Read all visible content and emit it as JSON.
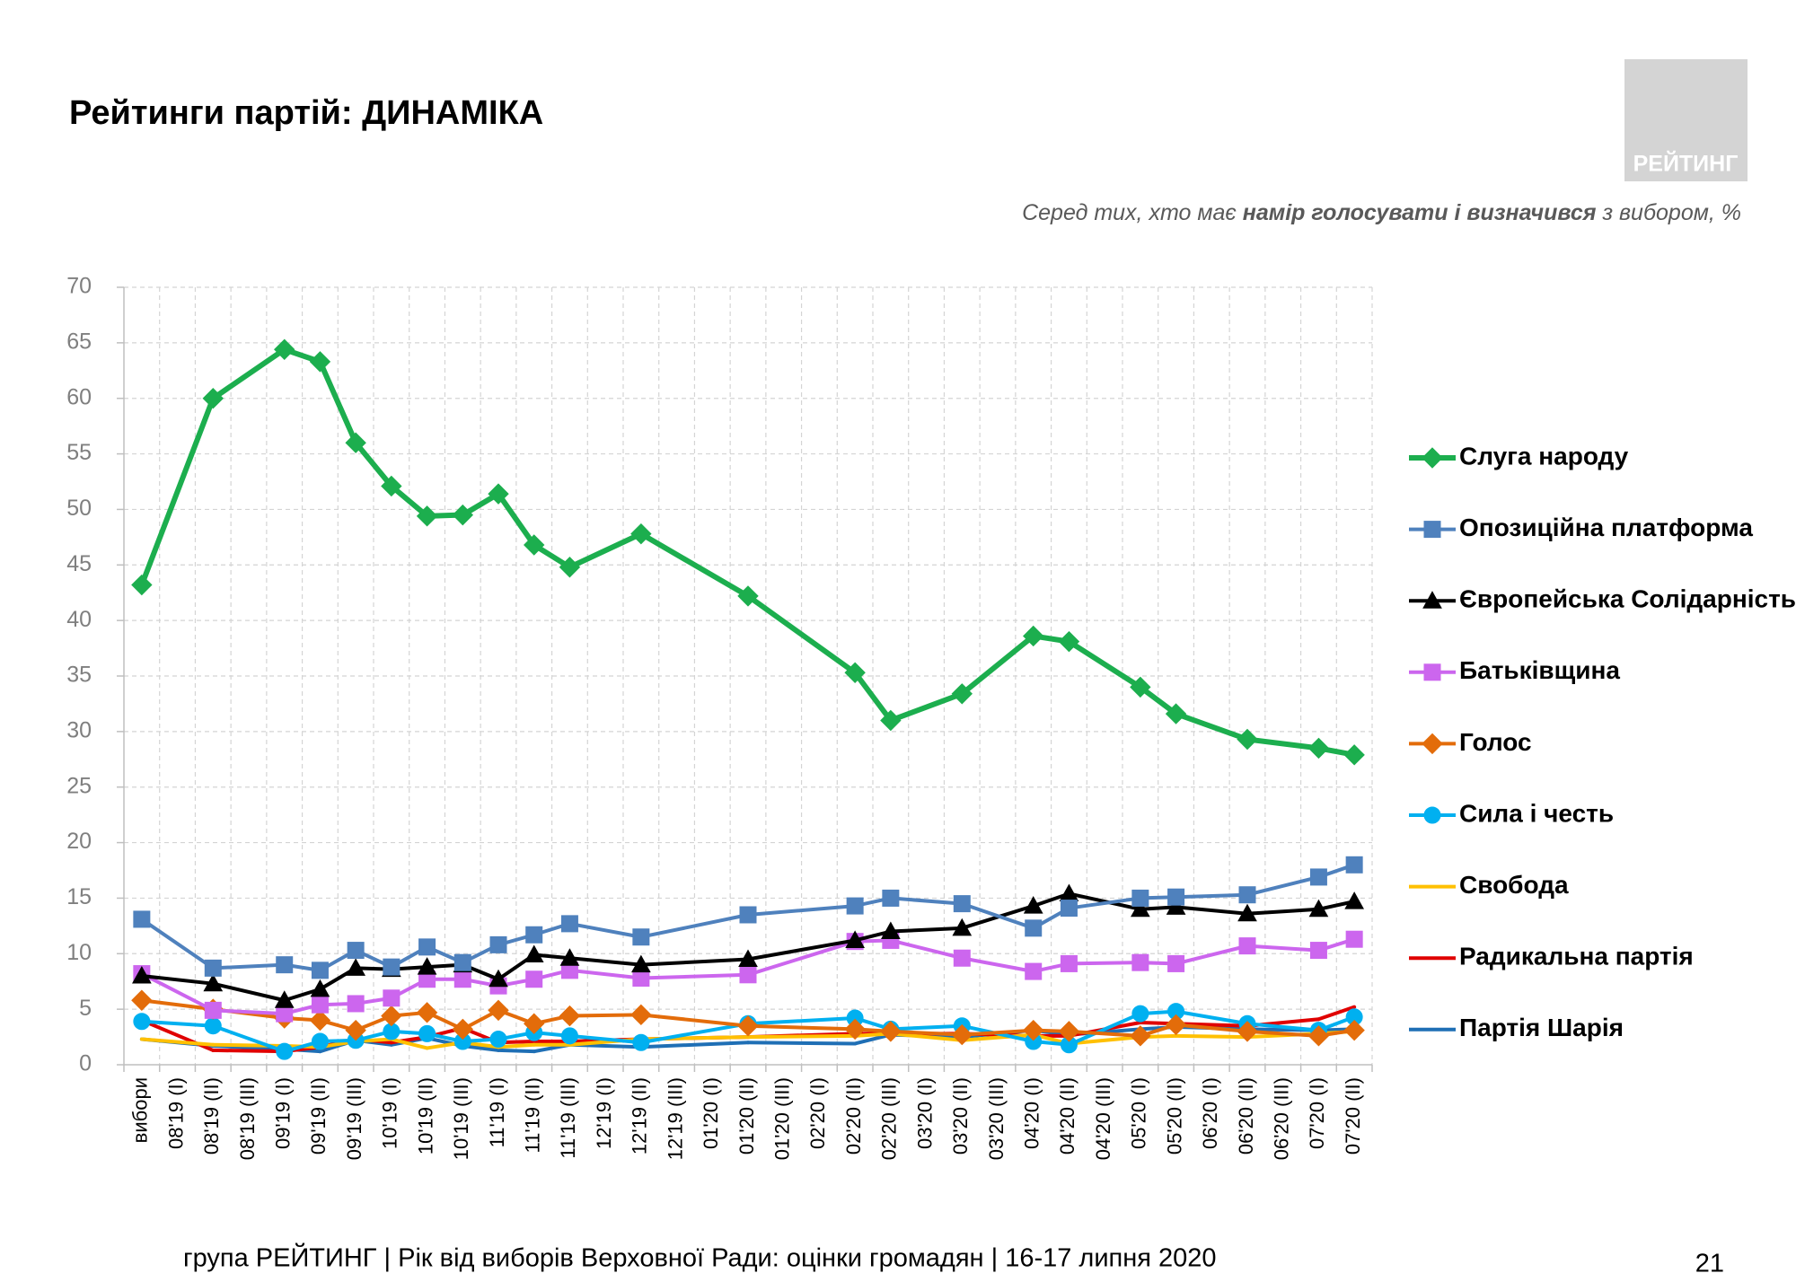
{
  "header": {
    "title": "Рейтинги партій: ДИНАМІКА",
    "logo": "РЕЙТИНГ",
    "subtitle": {
      "before": "Серед тих, хто має ",
      "bold": "намір голосувати і визначився",
      "after": " з вибором, %"
    }
  },
  "footer": {
    "text": "група РЕЙТИНГ | Рік від виборів Верховної Ради: оцінки громадян | 16-17 липня 2020",
    "page": "21"
  },
  "chart_data": {
    "type": "line",
    "legend": "right",
    "grid": true,
    "categories": [
      "вибори",
      "08'19 (I)",
      "08'19 (II)",
      "08'19 (III)",
      "09'19 (I)",
      "09'19 (II)",
      "09'19 (III)",
      "10'19 (I)",
      "10'19 (II)",
      "10'19 (III)",
      "11'19 (I)",
      "11'19 (II)",
      "11'19 (III)",
      "12'19 (I)",
      "12'19 (II)",
      "12'19 (III)",
      "01'20 (I)",
      "01'20 (II)",
      "01'20 (III)",
      "02'20 (I)",
      "02'20 (II)",
      "02'20 (III)",
      "03'20 (I)",
      "03'20 (II)",
      "03'20 (III)",
      "04'20 (I)",
      "04'20 (II)",
      "04'20 (III)",
      "05'20 (I)",
      "05'20 (II)",
      "06'20 (I)",
      "06'20 (II)",
      "06'20 (III)",
      "07'20 (I)",
      "07'20 (II)"
    ],
    "ylim": [
      0,
      70
    ],
    "yticks": [
      0,
      5,
      10,
      15,
      20,
      25,
      30,
      35,
      40,
      45,
      50,
      55,
      60,
      65,
      70
    ],
    "series": [
      {
        "name": "Слуга народу",
        "color": "#1cae4e",
        "marker": "diamond",
        "values": [
          43.2,
          null,
          60,
          null,
          64.4,
          63.3,
          56,
          52.1,
          49.4,
          49.5,
          51.4,
          46.8,
          44.8,
          null,
          47.8,
          null,
          null,
          42.2,
          null,
          null,
          35.3,
          31.0,
          null,
          33.4,
          null,
          38.6,
          38.1,
          null,
          34.0,
          31.6,
          null,
          29.3,
          null,
          28.5,
          27.9
        ]
      },
      {
        "name": "Опозиційна платформа",
        "color": "#4f81bd",
        "marker": "square",
        "values": [
          13.1,
          null,
          8.7,
          null,
          9.0,
          8.5,
          10.3,
          8.8,
          10.6,
          9.2,
          10.8,
          11.7,
          12.7,
          null,
          11.5,
          null,
          null,
          13.5,
          null,
          null,
          14.3,
          15.0,
          null,
          14.5,
          null,
          12.3,
          14.1,
          null,
          15.0,
          15.1,
          null,
          15.3,
          null,
          16.9,
          18.0
        ]
      },
      {
        "name": "Європейська Солідарність",
        "color": "#000000",
        "marker": "triangle",
        "values": [
          8.0,
          null,
          7.3,
          null,
          5.8,
          6.8,
          8.7,
          8.6,
          8.8,
          9.0,
          7.7,
          9.9,
          9.6,
          null,
          9.0,
          null,
          null,
          9.5,
          null,
          null,
          11.2,
          12.0,
          null,
          12.3,
          null,
          14.3,
          15.4,
          null,
          14.0,
          14.2,
          null,
          13.6,
          null,
          14.0,
          14.7
        ]
      },
      {
        "name": "Батьківщина",
        "color": "#cc66ee",
        "marker": "square",
        "values": [
          8.2,
          null,
          4.9,
          null,
          4.6,
          5.4,
          5.5,
          6.0,
          7.7,
          7.7,
          7.1,
          7.7,
          8.5,
          null,
          7.8,
          null,
          null,
          8.1,
          null,
          null,
          11.1,
          11.2,
          null,
          9.6,
          null,
          8.4,
          9.1,
          null,
          9.2,
          9.1,
          null,
          10.7,
          null,
          10.3,
          11.3
        ]
      },
      {
        "name": "Голос",
        "color": "#e36c0a",
        "marker": "diamond",
        "values": [
          5.8,
          null,
          5.0,
          null,
          4.2,
          4.0,
          3.1,
          4.4,
          4.7,
          3.2,
          4.9,
          3.7,
          4.4,
          null,
          4.5,
          null,
          null,
          3.5,
          null,
          null,
          3.2,
          3.0,
          null,
          2.7,
          null,
          3.1,
          3.0,
          null,
          2.6,
          3.6,
          null,
          3.0,
          null,
          2.6,
          3.1
        ]
      },
      {
        "name": "Сила і честь",
        "color": "#00b0f0",
        "marker": "circle",
        "values": [
          3.9,
          null,
          3.5,
          null,
          1.2,
          2.1,
          2.2,
          3.0,
          2.8,
          2.1,
          2.3,
          2.9,
          2.6,
          null,
          2.0,
          null,
          null,
          3.7,
          null,
          null,
          4.2,
          3.2,
          null,
          3.5,
          null,
          2.1,
          1.8,
          null,
          4.6,
          4.8,
          null,
          3.7,
          null,
          3.1,
          4.3
        ]
      },
      {
        "name": "Свобода",
        "color": "#ffc000",
        "marker": "none",
        "values": [
          2.3,
          null,
          1.8,
          null,
          1.7,
          1.6,
          2.1,
          2.3,
          1.5,
          2.0,
          1.6,
          1.8,
          1.8,
          null,
          2.3,
          null,
          null,
          2.5,
          null,
          null,
          2.6,
          2.8,
          null,
          2.2,
          null,
          2.7,
          1.9,
          null,
          2.5,
          2.6,
          null,
          2.5,
          null,
          2.8,
          3.0
        ]
      },
      {
        "name": "Радикальна партія",
        "color": "#e00000",
        "marker": "none",
        "values": [
          4.0,
          null,
          1.3,
          null,
          1.2,
          1.6,
          2.3,
          2.0,
          2.5,
          3.3,
          2.0,
          2.1,
          2.1,
          null,
          2.3,
          null,
          null,
          2.5,
          null,
          null,
          2.8,
          2.8,
          null,
          2.8,
          null,
          2.6,
          2.6,
          null,
          3.8,
          3.7,
          null,
          3.5,
          null,
          4.1,
          5.2
        ]
      },
      {
        "name": "Партія Шарія",
        "color": "#1f6fb5",
        "marker": "none",
        "values": [
          2.3,
          null,
          1.7,
          null,
          1.4,
          1.2,
          2.2,
          1.8,
          2.4,
          1.7,
          1.3,
          1.2,
          1.8,
          null,
          1.6,
          null,
          null,
          2.0,
          null,
          null,
          1.9,
          2.7,
          null,
          2.5,
          null,
          3.1,
          2.7,
          null,
          3.2,
          3.4,
          null,
          3.2,
          null,
          3.1,
          3.2
        ]
      }
    ]
  }
}
